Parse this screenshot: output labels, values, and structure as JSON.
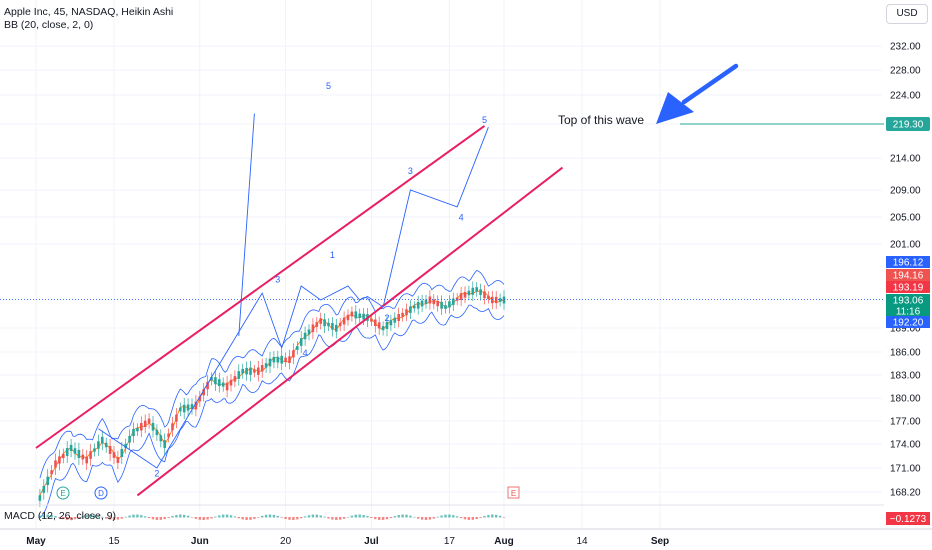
{
  "header": {
    "title": "Apple Inc, 45, NASDAQ, Heikin Ashi",
    "indicator": "BB (20, close, 2, 0)",
    "currency": "USD"
  },
  "macd": {
    "label": "MACD (12, 26, close, 9)",
    "value": "−0.1273",
    "value_color": "#f23645"
  },
  "colors": {
    "channel": "#e91e63",
    "wave": "#2962ff",
    "arrow": "#2962ff",
    "bull": "#26a69a",
    "bear": "#ef5350",
    "band": "#2962ff",
    "target_line": "#26a69a"
  },
  "annotation": {
    "text": "Top of this wave",
    "target_value": "219.30"
  },
  "event_badges": [
    "E",
    "D"
  ],
  "price_tags": [
    {
      "value": "196.12",
      "color": "#2962ff"
    },
    {
      "value": "194.16",
      "color": "#ef5350"
    },
    {
      "value": "193.19",
      "color": "#f23645"
    },
    {
      "value": "193.06",
      "color": "#089981"
    },
    {
      "value": "11:16",
      "color": "#089981"
    },
    {
      "value": "192.20",
      "color": "#2962ff"
    }
  ],
  "chart_data": {
    "type": "line",
    "title": "Apple Inc, 45, NASDAQ, Heikin Ashi",
    "x_ticks": [
      "May",
      "15",
      "Jun",
      "20",
      "Jul",
      "17",
      "Aug",
      "14",
      "Sep"
    ],
    "y_ticks": [
      232.0,
      228.0,
      224.0,
      219.3,
      214.0,
      209.0,
      205.0,
      201.0,
      189.0,
      186.0,
      183.0,
      180.0,
      177.0,
      174.0,
      171.0,
      168.2
    ],
    "y_tick_labels": [
      "232.00",
      "228.00",
      "224.00",
      "219.30",
      "214.00",
      "209.00",
      "205.00",
      "201.00",
      "189.00",
      "186.00",
      "183.00",
      "180.00",
      "177.00",
      "174.00",
      "171.00",
      "168.20"
    ],
    "series": [
      {
        "type": "price_path",
        "points": [
          [
            0.5,
            167.5
          ],
          [
            2.5,
            171.5
          ],
          [
            4.5,
            173.5
          ],
          [
            6.5,
            172.0
          ],
          [
            8.5,
            174.5
          ],
          [
            10.5,
            172.0
          ],
          [
            12.5,
            175.5
          ],
          [
            14.5,
            177.0
          ],
          [
            16.5,
            174.0
          ],
          [
            18.5,
            178.5
          ],
          [
            20.5,
            179.0
          ],
          [
            22.5,
            182.5
          ],
          [
            24.5,
            181.5
          ],
          [
            26.5,
            183.5
          ],
          [
            28.5,
            183.5
          ],
          [
            30.5,
            185.0
          ],
          [
            32.5,
            185.0
          ],
          [
            34.5,
            188.0
          ],
          [
            36.5,
            190.0
          ],
          [
            38.5,
            189.0
          ],
          [
            40.5,
            191.0
          ],
          [
            42.5,
            190.5
          ],
          [
            44.5,
            189.0
          ],
          [
            46.5,
            190.5
          ],
          [
            48.5,
            192.0
          ],
          [
            50.5,
            193.0
          ],
          [
            52.5,
            192.0
          ],
          [
            54.5,
            193.5
          ],
          [
            56.5,
            194.5
          ],
          [
            58.5,
            193.0
          ],
          [
            60.0,
            193.0
          ]
        ]
      },
      {
        "type": "elliott_wave_path",
        "points": [
          [
            8.0,
            176.0
          ],
          [
            15.5,
            171.0
          ],
          [
            29.0,
            194.0
          ],
          [
            31.5,
            186.5
          ],
          [
            34.0,
            195.0
          ],
          [
            36.5,
            193.0
          ],
          [
            40.0,
            195.0
          ],
          [
            41.5,
            193.0
          ],
          [
            42.5,
            193.5
          ],
          [
            44.5,
            192.0
          ]
        ]
      },
      {
        "type": "elliott_wave_projection",
        "points": [
          [
            44.5,
            192.0
          ],
          [
            48.0,
            209.0
          ],
          [
            54.0,
            206.5
          ],
          [
            58.0,
            218.8
          ]
        ]
      },
      {
        "type": "early_wave_5",
        "points": [
          [
            26.0,
            188.0
          ],
          [
            28.0,
            221.0
          ]
        ]
      },
      {
        "type": "upper_channel",
        "points": [
          [
            0,
            173.5
          ],
          [
            57.5,
            219.0
          ]
        ]
      },
      {
        "type": "lower_channel",
        "points": [
          [
            13,
            167.8
          ],
          [
            67.5,
            212.5
          ]
        ]
      }
    ],
    "wave_labels": [
      {
        "label": "2",
        "x": 15.5,
        "y": 170.0
      },
      {
        "label": "3",
        "x": 31.0,
        "y": 195.5
      },
      {
        "label": "4",
        "x": 34.5,
        "y": 185.5
      },
      {
        "label": "1",
        "x": 38.0,
        "y": 199.0
      },
      {
        "label": "2",
        "x": 45.0,
        "y": 190.0
      },
      {
        "label": "5",
        "x": 37.5,
        "y": 225.0
      },
      {
        "label": "3",
        "x": 48.0,
        "y": 211.5
      },
      {
        "label": "4",
        "x": 54.5,
        "y": 204.5
      },
      {
        "label": "5",
        "x": 57.5,
        "y": 219.5
      }
    ]
  }
}
